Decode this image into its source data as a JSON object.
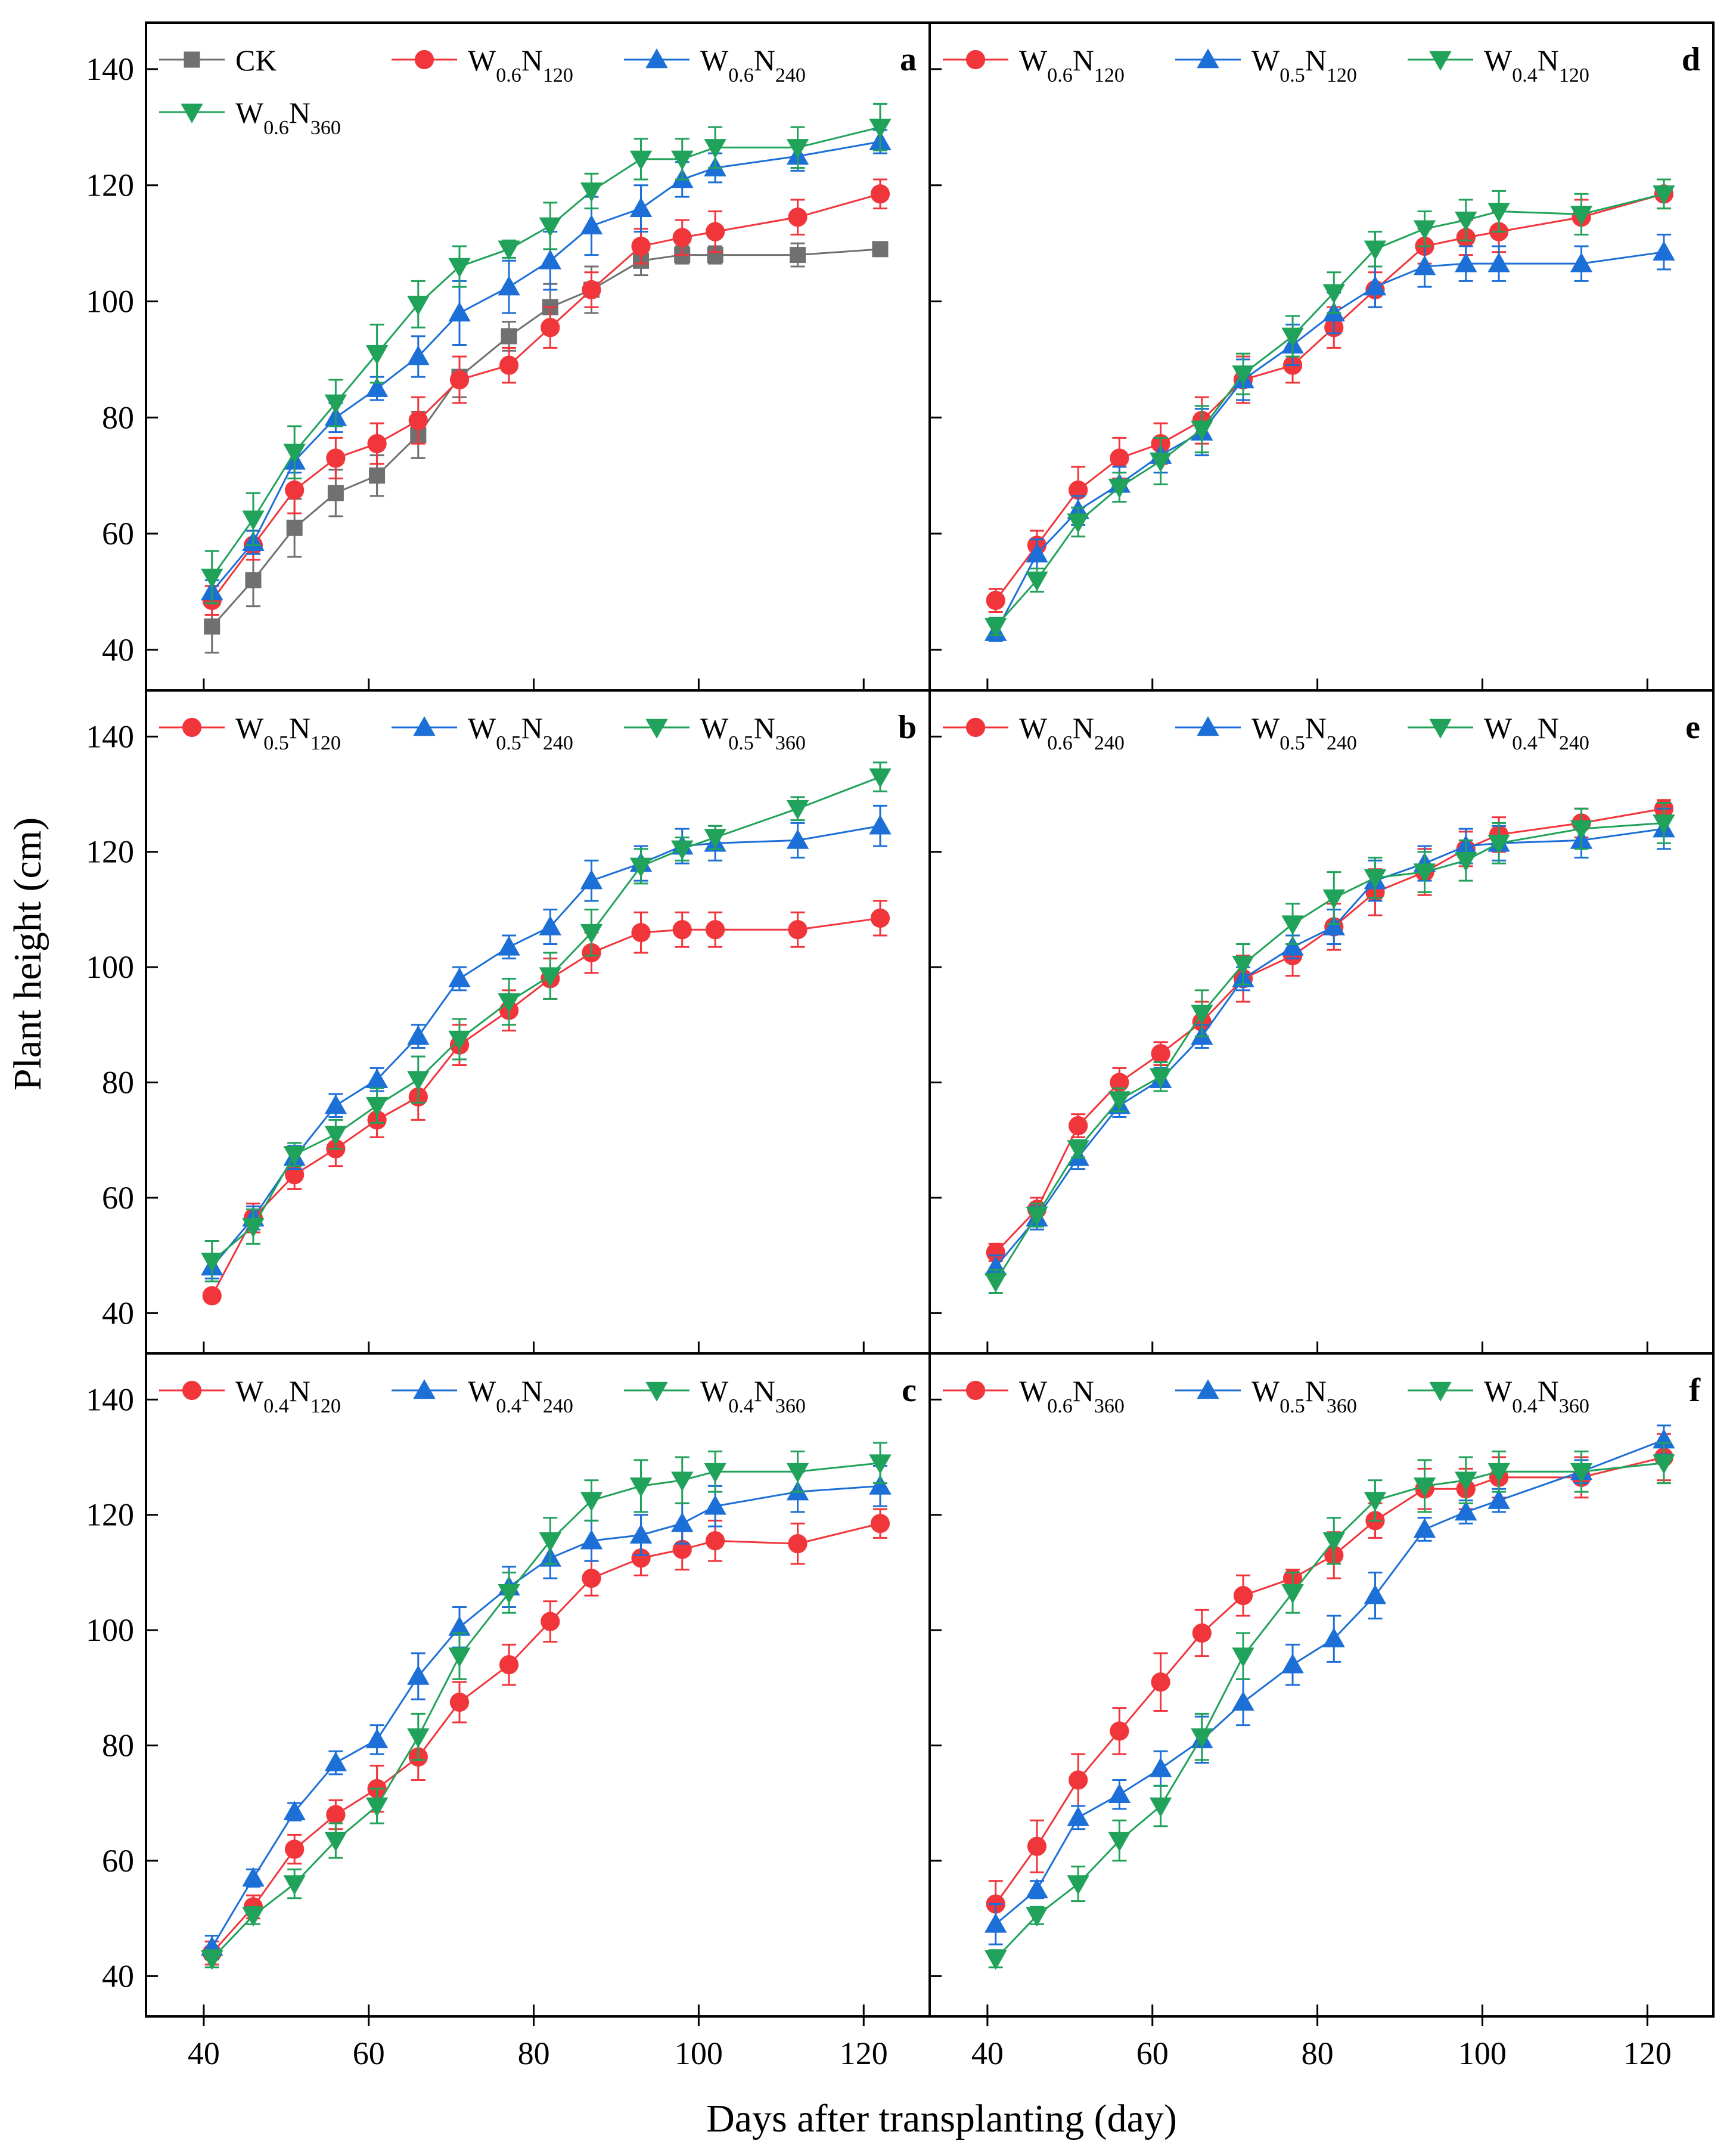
{
  "figure": {
    "x_axis_label": "Days after transplanting (day)",
    "y_axis_label": "Plant height (cm)"
  },
  "colors": {
    "CK": "#707070",
    "red": "#f0353b",
    "blue": "#1c6fd6",
    "green": "#21a25a"
  },
  "chart_data": [
    {
      "type": "line",
      "panel_label": "a",
      "xlim": [
        33,
        128
      ],
      "ylim": [
        33,
        148
      ],
      "x_ticks": [
        40,
        60,
        80,
        100,
        120
      ],
      "y_ticks": [
        40,
        60,
        80,
        100,
        120,
        140
      ],
      "x": [
        41,
        46,
        51,
        56,
        61,
        66,
        71,
        77,
        82,
        87,
        93,
        98,
        102,
        112,
        122
      ],
      "series": [
        {
          "name": "CK",
          "sub1": "",
          "sub2": "",
          "marker": "square",
          "color": "#707070",
          "values": [
            44,
            52,
            61,
            67,
            70,
            77,
            87,
            94,
            99,
            102,
            107,
            108,
            108,
            108,
            109
          ],
          "errors": [
            4.5,
            4.5,
            5,
            4,
            3.5,
            4,
            3.5,
            2.5,
            4,
            4,
            2.5,
            1.5,
            1.5,
            2,
            1
          ]
        },
        {
          "name": "W",
          "sub1": "0.6",
          "mid": "N",
          "sub2": "120",
          "marker": "circle",
          "color": "#f0353b",
          "values": [
            48.5,
            58,
            67.5,
            73,
            75.5,
            79.5,
            86.5,
            89,
            95.5,
            102,
            109.5,
            111,
            112,
            114.5,
            118.5
          ],
          "errors": [
            2.5,
            2.5,
            4,
            3.5,
            3.5,
            4,
            4,
            3,
            3.5,
            3,
            3,
            3,
            3.5,
            3,
            2.5
          ]
        },
        {
          "name": "W",
          "sub1": "0.6",
          "mid": "N",
          "sub2": "240",
          "marker": "triangle-up",
          "color": "#1c6fd6",
          "values": [
            50,
            58.5,
            72.5,
            80,
            85,
            90.5,
            98,
            102.5,
            107,
            113,
            116,
            121,
            123,
            125,
            127.5
          ],
          "errors": [
            2,
            2,
            2,
            2.5,
            2,
            3.5,
            5.5,
            4.5,
            5,
            5,
            4,
            3,
            2.5,
            2.5,
            2
          ]
        },
        {
          "name": "W",
          "sub1": "0.6",
          "mid": "N",
          "sub2": "360",
          "marker": "triangle-down",
          "color": "#21a25a",
          "values": [
            52.5,
            62.5,
            74,
            82.5,
            91,
            99.5,
            106,
            109,
            113,
            119,
            124.5,
            124.5,
            126.5,
            126.5,
            130
          ],
          "errors": [
            4.5,
            4.5,
            4.5,
            4,
            5,
            4,
            3.5,
            1.5,
            4,
            3,
            3.5,
            3.5,
            3.5,
            3.5,
            4
          ]
        }
      ]
    },
    {
      "type": "line",
      "panel_label": "b",
      "xlim": [
        33,
        128
      ],
      "ylim": [
        33,
        148
      ],
      "x_ticks": [
        40,
        60,
        80,
        100,
        120
      ],
      "y_ticks": [
        40,
        60,
        80,
        100,
        120,
        140
      ],
      "x": [
        41,
        46,
        51,
        56,
        61,
        66,
        71,
        77,
        82,
        87,
        93,
        98,
        102,
        112,
        122
      ],
      "series": [
        {
          "name": "W",
          "sub1": "0.5",
          "mid": "N",
          "sub2": "120",
          "marker": "circle",
          "color": "#f0353b",
          "values": [
            43,
            56.5,
            64,
            68.5,
            73.5,
            77.5,
            86.5,
            92.5,
            98,
            102.5,
            106,
            106.5,
            106.5,
            106.5,
            108.5
          ],
          "errors": [
            1,
            2.5,
            2.5,
            3,
            3,
            4,
            3.5,
            3.5,
            3.5,
            3.5,
            3.5,
            3,
            3,
            3,
            3
          ]
        },
        {
          "name": "W",
          "sub1": "0.5",
          "mid": "N",
          "sub2": "240",
          "marker": "triangle-up",
          "color": "#1c6fd6",
          "values": [
            48,
            56.5,
            67,
            76,
            80.5,
            88,
            98,
            103.5,
            107,
            115,
            118,
            121,
            121.5,
            122,
            124.5
          ],
          "errors": [
            2,
            2,
            2,
            2,
            2,
            2,
            2,
            2,
            3,
            3.5,
            3,
            3,
            3,
            3,
            3.5
          ]
        },
        {
          "name": "W",
          "sub1": "0.5",
          "mid": "N",
          "sub2": "360",
          "marker": "triangle-down",
          "color": "#21a25a",
          "values": [
            49,
            55,
            67.5,
            71,
            76,
            80.5,
            87.5,
            94,
            98.5,
            106,
            117.5,
            120.5,
            122.5,
            127.5,
            133
          ],
          "errors": [
            3.5,
            3,
            2,
            2.5,
            3,
            4,
            3.5,
            4,
            4,
            4,
            3,
            2,
            2,
            2,
            2.5
          ]
        }
      ]
    },
    {
      "type": "line",
      "panel_label": "c",
      "xlim": [
        33,
        128
      ],
      "ylim": [
        33,
        148
      ],
      "x_ticks": [
        40,
        60,
        80,
        100,
        120
      ],
      "y_ticks": [
        40,
        60,
        80,
        100,
        120,
        140
      ],
      "x": [
        41,
        46,
        51,
        56,
        61,
        66,
        71,
        77,
        82,
        87,
        93,
        98,
        102,
        112,
        122
      ],
      "series": [
        {
          "name": "W",
          "sub1": "0.4",
          "mid": "N",
          "sub2": "120",
          "marker": "circle",
          "color": "#f0353b",
          "values": [
            44,
            52,
            62,
            68,
            72.5,
            78,
            87.5,
            94,
            101.5,
            109,
            112.5,
            114,
            115.5,
            115,
            118.5
          ],
          "errors": [
            2,
            2,
            2.5,
            2.5,
            4,
            4,
            3.5,
            3.5,
            3.5,
            3,
            3,
            3.5,
            3.5,
            3.5,
            2.5
          ]
        },
        {
          "name": "W",
          "sub1": "0.4",
          "mid": "N",
          "sub2": "240",
          "marker": "triangle-up",
          "color": "#1c6fd6",
          "values": [
            45,
            57,
            68.5,
            77,
            81,
            92,
            100.5,
            107.5,
            112.5,
            115.5,
            116.5,
            118.5,
            121.5,
            124,
            125
          ],
          "errors": [
            2,
            1.5,
            1.5,
            2,
            2.5,
            4,
            3.5,
            3.5,
            3.5,
            3.5,
            3.5,
            3.5,
            3.5,
            3.5,
            3.5
          ]
        },
        {
          "name": "W",
          "sub1": "0.4",
          "mid": "N",
          "sub2": "360",
          "marker": "triangle-down",
          "color": "#21a25a",
          "values": [
            43,
            50.5,
            56,
            63.5,
            69.5,
            81.5,
            95.5,
            106.5,
            115.5,
            122.5,
            125,
            126,
            127.5,
            127.5,
            129
          ],
          "errors": [
            1.5,
            1.5,
            2.5,
            3,
            3,
            4,
            4,
            3.5,
            4,
            3.5,
            4.5,
            4,
            3.5,
            3.5,
            3.5
          ]
        }
      ]
    },
    {
      "type": "line",
      "panel_label": "d",
      "xlim": [
        33,
        128
      ],
      "ylim": [
        33,
        148
      ],
      "x_ticks": [
        40,
        60,
        80,
        100,
        120
      ],
      "y_ticks": [
        40,
        60,
        80,
        100,
        120,
        140
      ],
      "x": [
        41,
        46,
        51,
        56,
        61,
        66,
        71,
        77,
        82,
        87,
        93,
        98,
        102,
        112,
        122
      ],
      "series": [
        {
          "name": "W",
          "sub1": "0.6",
          "mid": "N",
          "sub2": "120",
          "marker": "circle",
          "color": "#f0353b",
          "values": [
            48.5,
            58,
            67.5,
            73,
            75.5,
            79.5,
            86.5,
            89,
            95.5,
            102,
            109.5,
            111,
            112,
            114.5,
            118.5
          ],
          "errors": [
            2,
            2.5,
            4,
            3.5,
            3.5,
            4,
            4,
            3,
            3.5,
            3,
            3,
            3,
            3.5,
            3,
            2.5
          ]
        },
        {
          "name": "W",
          "sub1": "0.5",
          "mid": "N",
          "sub2": "120",
          "marker": "triangle-up",
          "color": "#1c6fd6",
          "values": [
            43,
            56.5,
            64,
            68.5,
            73.5,
            77.5,
            86.5,
            92.5,
            98,
            102.5,
            106,
            106.5,
            106.5,
            106.5,
            108.5
          ],
          "errors": [
            1.5,
            2.5,
            2.5,
            3,
            3,
            4,
            3.5,
            3.5,
            3.5,
            3.5,
            3.5,
            3,
            3,
            3,
            3
          ]
        },
        {
          "name": "W",
          "sub1": "0.4",
          "mid": "N",
          "sub2": "120",
          "marker": "triangle-down",
          "color": "#21a25a",
          "values": [
            44,
            52,
            62,
            68,
            72.5,
            78,
            87.5,
            94,
            101.5,
            109,
            112.5,
            114,
            115.5,
            115,
            118.5
          ],
          "errors": [
            1.5,
            2,
            2.5,
            2.5,
            4,
            4,
            3.5,
            3.5,
            3.5,
            3,
            3,
            3.5,
            3.5,
            3.5,
            2.5
          ]
        }
      ]
    },
    {
      "type": "line",
      "panel_label": "e",
      "xlim": [
        33,
        128
      ],
      "ylim": [
        33,
        148
      ],
      "x_ticks": [
        40,
        60,
        80,
        100,
        120
      ],
      "y_ticks": [
        40,
        60,
        80,
        100,
        120,
        140
      ],
      "x": [
        41,
        46,
        51,
        56,
        61,
        66,
        71,
        77,
        82,
        87,
        93,
        98,
        102,
        112,
        122
      ],
      "series": [
        {
          "name": "W",
          "sub1": "0.6",
          "mid": "N",
          "sub2": "240",
          "marker": "circle",
          "color": "#f0353b",
          "values": [
            50.5,
            58,
            72.5,
            80,
            85,
            90.5,
            98,
            102,
            107,
            113,
            116.5,
            120.5,
            123,
            125,
            127.5
          ],
          "errors": [
            1.5,
            2,
            2,
            2.5,
            2,
            3.5,
            4,
            3.5,
            4,
            4,
            4,
            3,
            3,
            2.5,
            1.5
          ]
        },
        {
          "name": "W",
          "sub1": "0.5",
          "mid": "N",
          "sub2": "240",
          "marker": "triangle-up",
          "color": "#1c6fd6",
          "values": [
            48,
            56.5,
            67,
            76,
            80.5,
            88,
            98,
            103.5,
            107,
            115,
            118,
            121,
            121.5,
            122,
            124
          ],
          "errors": [
            2,
            2,
            2,
            2,
            2,
            2,
            2,
            2,
            3,
            3.5,
            3,
            3,
            3,
            3,
            3.5
          ]
        },
        {
          "name": "W",
          "sub1": "0.4",
          "mid": "N",
          "sub2": "240",
          "marker": "triangle-down",
          "color": "#21a25a",
          "values": [
            45.5,
            57,
            68.5,
            77,
            81,
            92,
            100.5,
            107.5,
            112,
            115.5,
            116.5,
            118.5,
            121.5,
            124,
            125
          ],
          "errors": [
            2,
            2,
            1.5,
            2,
            2.5,
            4,
            3.5,
            3.5,
            4.5,
            3.5,
            3.5,
            3.5,
            3.5,
            3.5,
            3.5
          ]
        }
      ]
    },
    {
      "type": "line",
      "panel_label": "f",
      "xlim": [
        33,
        128
      ],
      "ylim": [
        33,
        148
      ],
      "x_ticks": [
        40,
        60,
        80,
        100,
        120
      ],
      "y_ticks": [
        40,
        60,
        80,
        100,
        120,
        140
      ],
      "x": [
        41,
        46,
        51,
        56,
        61,
        66,
        71,
        77,
        82,
        87,
        93,
        98,
        102,
        112,
        122
      ],
      "series": [
        {
          "name": "W",
          "sub1": "0.6",
          "mid": "N",
          "sub2": "360",
          "marker": "circle",
          "color": "#f0353b",
          "values": [
            52.5,
            62.5,
            74,
            82.5,
            91,
            99.5,
            106,
            109,
            113,
            119,
            124.5,
            124.5,
            126.5,
            126.5,
            130
          ],
          "errors": [
            4,
            4.5,
            4.5,
            4,
            5,
            4,
            3.5,
            1.5,
            4,
            3,
            3.5,
            3.5,
            3.5,
            3.5,
            4
          ]
        },
        {
          "name": "W",
          "sub1": "0.5",
          "mid": "N",
          "sub2": "360",
          "marker": "triangle-up",
          "color": "#1c6fd6",
          "values": [
            49,
            55,
            67.5,
            71.5,
            76,
            81,
            87.5,
            94,
            98.5,
            106,
            117.5,
            120.5,
            122.5,
            127.5,
            133
          ],
          "errors": [
            3.5,
            1.5,
            2,
            2.5,
            3,
            4,
            4,
            3.5,
            4,
            4,
            2,
            2,
            2,
            2,
            2.5
          ]
        },
        {
          "name": "W",
          "sub1": "0.4",
          "mid": "N",
          "sub2": "360",
          "marker": "triangle-down",
          "color": "#21a25a",
          "values": [
            43,
            50.5,
            56,
            63.5,
            69.5,
            81.5,
            95.5,
            106.5,
            115.5,
            122.5,
            125,
            126,
            127.5,
            127.5,
            129
          ],
          "errors": [
            1.5,
            1.5,
            3,
            3.5,
            3.5,
            4,
            4,
            3.5,
            4,
            3.5,
            4.5,
            4,
            3.5,
            3.5,
            3.5
          ]
        }
      ]
    }
  ]
}
